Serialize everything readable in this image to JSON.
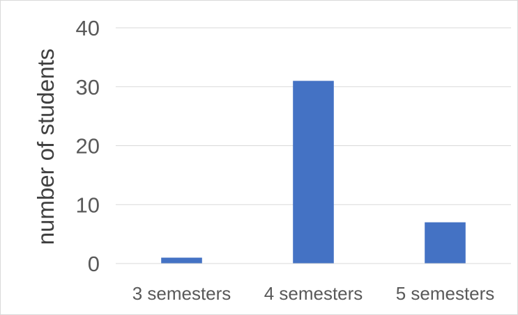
{
  "chart_data": {
    "type": "bar",
    "title": "",
    "xlabel": "",
    "ylabel": "number of students",
    "categories": [
      "3 semesters",
      "4 semesters",
      "5 semesters"
    ],
    "series": [
      {
        "values": [
          1,
          31,
          7
        ],
        "color": "#4472C4"
      }
    ],
    "ylim": [
      0,
      40
    ],
    "yticks": [
      0,
      10,
      20,
      30,
      40
    ],
    "grid": true,
    "legend": "none"
  }
}
